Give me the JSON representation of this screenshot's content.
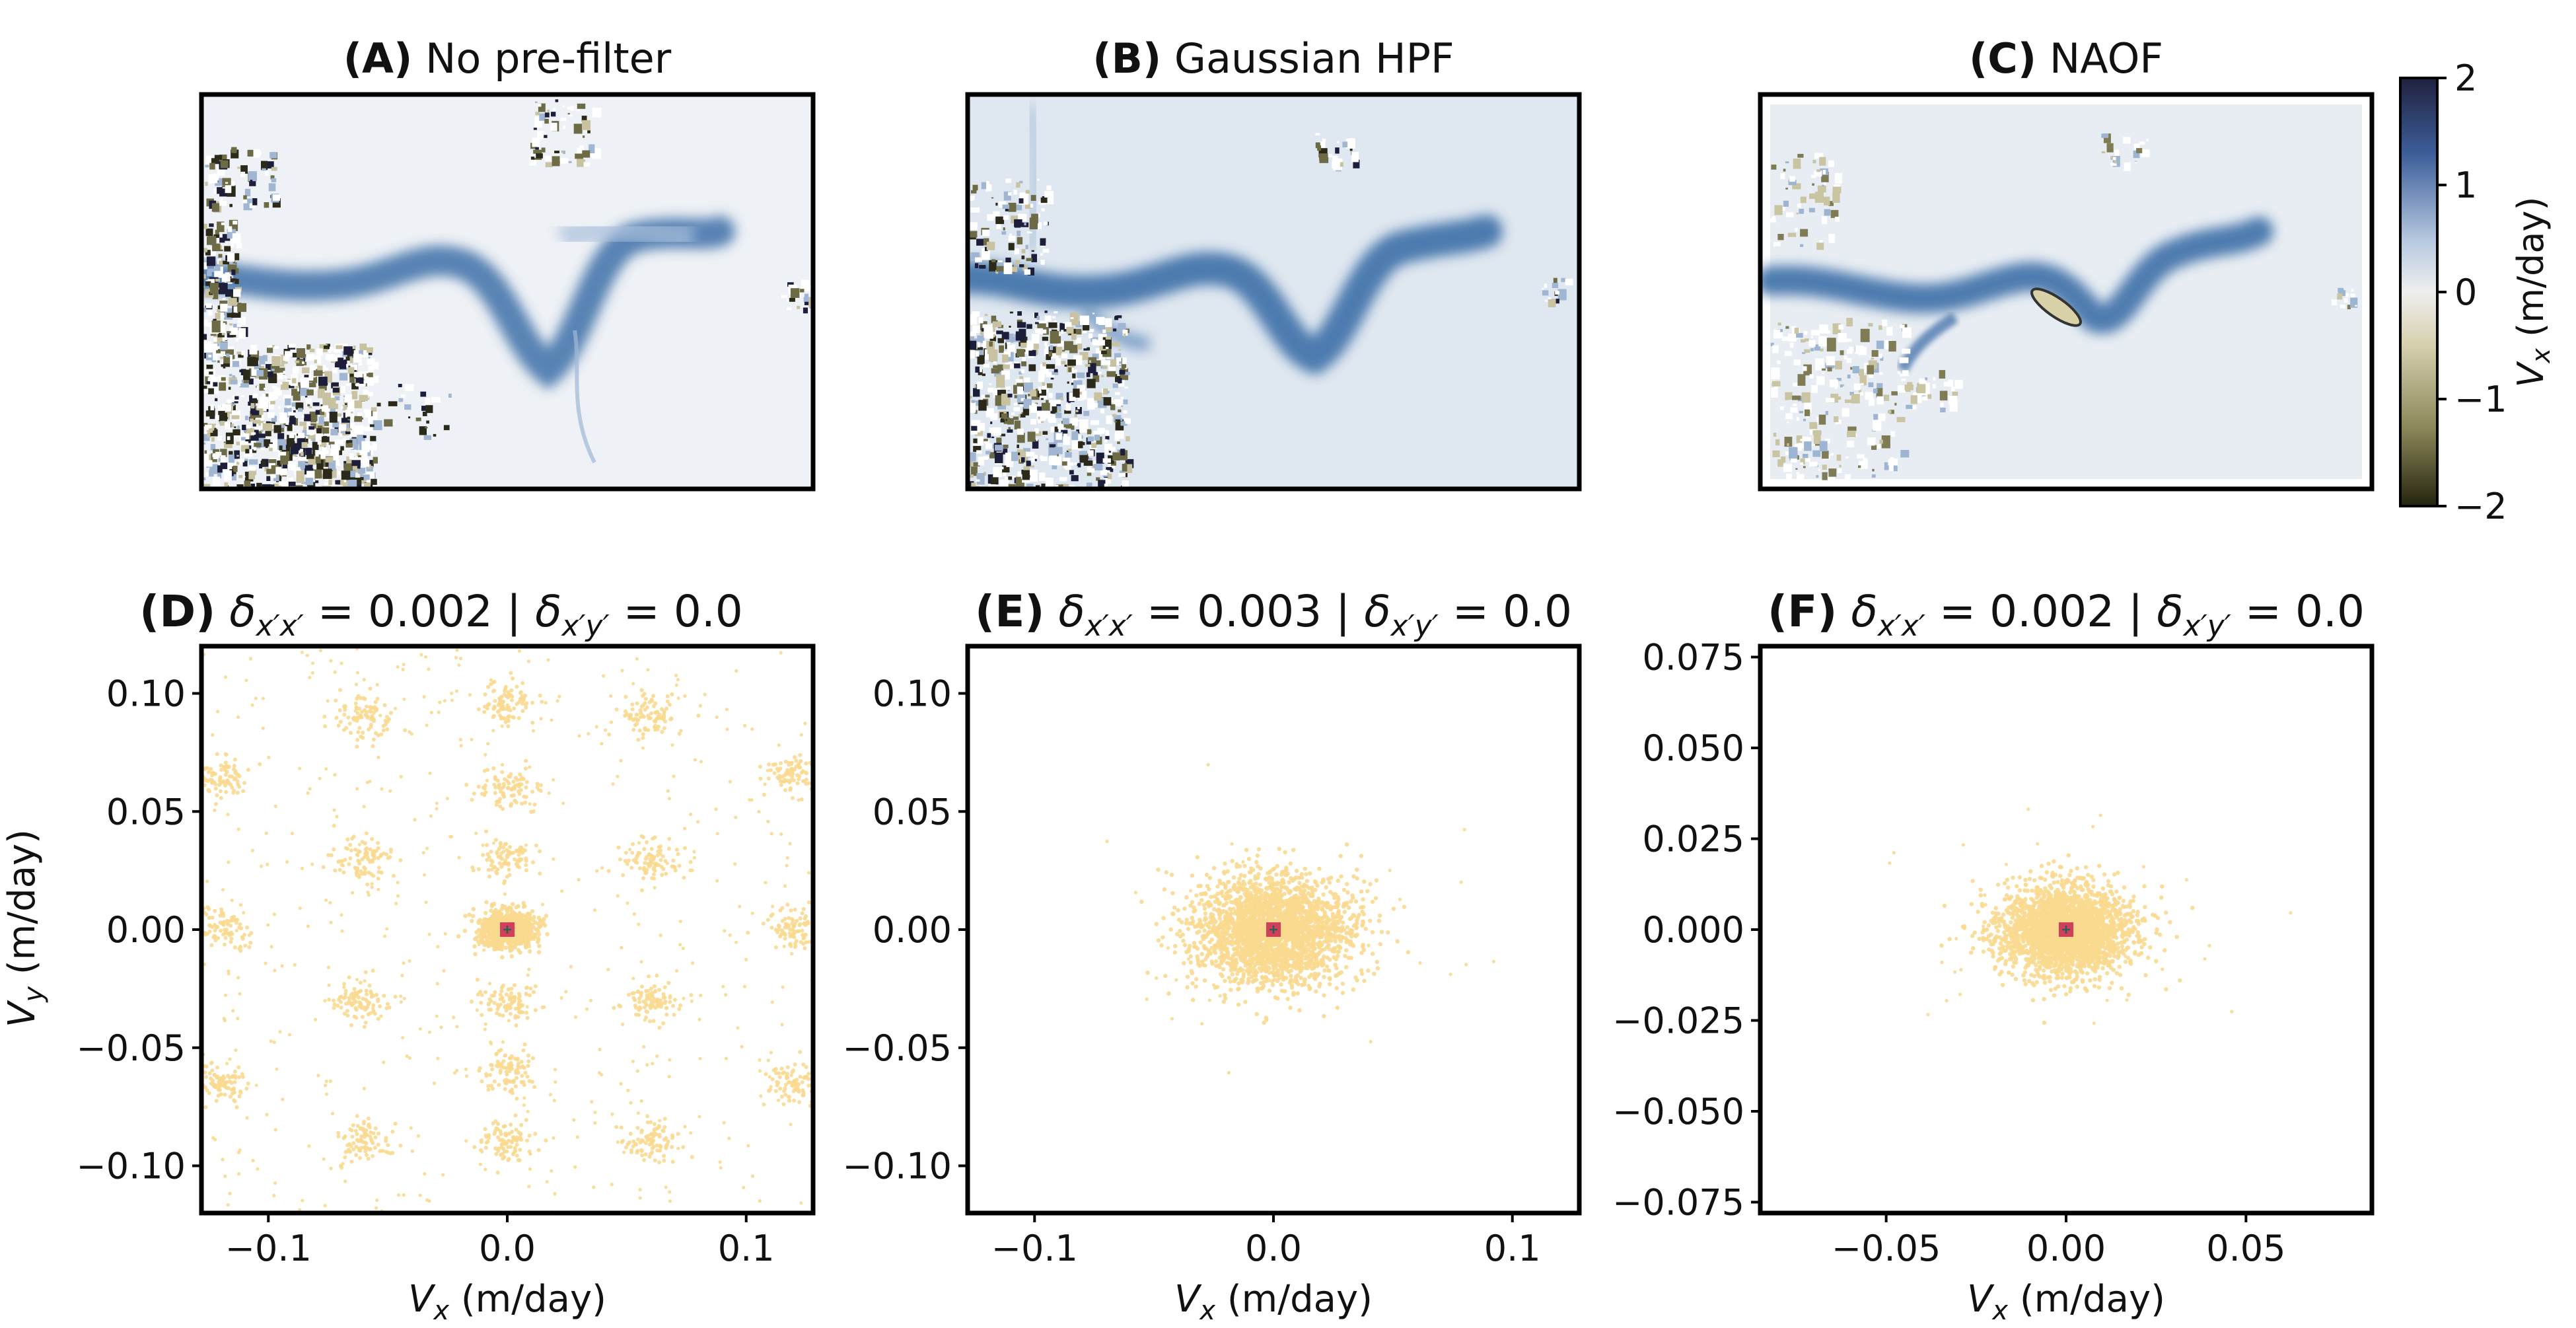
{
  "figure": {
    "colorbar": {
      "label_main": "V",
      "label_sub": "x",
      "label_unit": " (m/day)",
      "ticks": [
        "2",
        "1",
        "0",
        "−1",
        "−2"
      ],
      "tick_values": [
        2,
        1,
        0,
        -1,
        -2
      ],
      "range": [
        -2,
        2
      ],
      "colors": [
        "#20213f",
        "#3d5f9b",
        "#b7c9e0",
        "#eeeeee",
        "#d7d1b0",
        "#8b8658",
        "#24240f"
      ]
    },
    "map_panels": [
      {
        "bold": "(A)",
        "title": " No pre-filter"
      },
      {
        "bold": "(B)",
        "title": " Gaussian HPF"
      },
      {
        "bold": "(C)",
        "title": " NAOF"
      }
    ],
    "scatter_panels": [
      {
        "bold": "(D)",
        "title_a": " 0.002 | ",
        "title_b": " 0.0"
      },
      {
        "bold": "(E)",
        "title_a": " 0.003 | ",
        "title_b": " 0.0"
      },
      {
        "bold": "(F)",
        "title_a": " 0.002 | ",
        "title_b": " 0.0"
      }
    ],
    "axis_labels": {
      "x_main": "V",
      "x_sub": "x",
      "x_unit": " (m/day)",
      "y_main": "V",
      "y_sub": "y",
      "y_unit": " (m/day)"
    },
    "colors": {
      "scatter_point": "#f9d98f",
      "center_marker": "#d0405a",
      "river": "#3c6fa8"
    }
  },
  "chart_data": [
    {
      "type": "heatmap",
      "title": "(A) No pre-filter",
      "colorbar_label": "Vx (m/day)",
      "colorbar_range": [
        -2,
        2
      ]
    },
    {
      "type": "heatmap",
      "title": "(B) Gaussian HPF",
      "colorbar_label": "Vx (m/day)",
      "colorbar_range": [
        -2,
        2
      ]
    },
    {
      "type": "heatmap",
      "title": "(C) NAOF",
      "colorbar_label": "Vx (m/day)",
      "colorbar_range": [
        -2,
        2
      ]
    },
    {
      "type": "scatter",
      "title": "(D) δx'x' = 0.002 | δx'y' = 0.0",
      "xlabel": "Vx (m/day)",
      "ylabel": "Vy (m/day)",
      "xlim": [
        -0.128,
        0.128
      ],
      "ylim": [
        -0.12,
        0.12
      ],
      "xticks": [
        -0.1,
        0.0,
        0.1
      ],
      "xtick_labels": [
        "−0.1",
        "0.0",
        "0.1"
      ],
      "yticks": [
        0.1,
        0.05,
        0.0,
        -0.05,
        -0.1
      ],
      "ytick_labels": [
        "0.10",
        "0.05",
        "0.00",
        "−0.05",
        "−0.10"
      ],
      "core": {
        "x": 0,
        "y": 0,
        "sx": 0.006,
        "sy": 0.004
      },
      "clusters": [
        {
          "x": -0.06,
          "y": 0.09
        },
        {
          "x": 0.0,
          "y": 0.095
        },
        {
          "x": 0.06,
          "y": 0.09
        },
        {
          "x": -0.12,
          "y": 0.065
        },
        {
          "x": 0.12,
          "y": 0.065
        },
        {
          "x": -0.06,
          "y": 0.03
        },
        {
          "x": 0.0,
          "y": 0.06
        },
        {
          "x": 0.0,
          "y": 0.03
        },
        {
          "x": 0.06,
          "y": 0.03
        },
        {
          "x": -0.12,
          "y": 0.0
        },
        {
          "x": 0.12,
          "y": 0.0
        },
        {
          "x": -0.06,
          "y": -0.03
        },
        {
          "x": 0.0,
          "y": -0.03
        },
        {
          "x": 0.0,
          "y": -0.06
        },
        {
          "x": 0.06,
          "y": -0.03
        },
        {
          "x": -0.12,
          "y": -0.065
        },
        {
          "x": 0.12,
          "y": -0.065
        },
        {
          "x": -0.06,
          "y": -0.09
        },
        {
          "x": 0.0,
          "y": -0.09
        },
        {
          "x": 0.06,
          "y": -0.09
        }
      ],
      "center_marker": [
        0,
        0
      ]
    },
    {
      "type": "scatter",
      "title": "(E) δx'x' = 0.003 | δx'y' = 0.0",
      "xlabel": "Vx (m/day)",
      "ylabel": "",
      "xlim": [
        -0.128,
        0.128
      ],
      "ylim": [
        -0.12,
        0.12
      ],
      "xticks": [
        -0.1,
        0.0,
        0.1
      ],
      "xtick_labels": [
        "−0.1",
        "0.0",
        "0.1"
      ],
      "yticks": [
        0.1,
        0.05,
        0.0,
        -0.05,
        -0.1
      ],
      "ytick_labels": [
        "0.10",
        "0.05",
        "0.00",
        "−0.05",
        "−0.10"
      ],
      "core": {
        "x": 0,
        "y": 0,
        "sx": 0.016,
        "sy": 0.011
      },
      "clusters": [],
      "center_marker": [
        0,
        0
      ]
    },
    {
      "type": "scatter",
      "title": "(F) δx'x' = 0.002 | δx'y' = 0.0",
      "xlabel": "Vx (m/day)",
      "ylabel": "",
      "xlim": [
        -0.085,
        0.085
      ],
      "ylim": [
        -0.078,
        0.078
      ],
      "xticks": [
        -0.05,
        0.0,
        0.05
      ],
      "xtick_labels": [
        "−0.05",
        "0.00",
        "0.05"
      ],
      "yticks": [
        0.075,
        0.05,
        0.025,
        0.0,
        -0.025,
        -0.05,
        -0.075
      ],
      "ytick_labels": [
        "0.075",
        "0.050",
        "0.025",
        "0.000",
        "−0.025",
        "−0.050",
        "−0.075"
      ],
      "core": {
        "x": 0,
        "y": 0,
        "sx": 0.009,
        "sy": 0.006
      },
      "clusters": [],
      "center_marker": [
        0,
        0
      ]
    }
  ]
}
